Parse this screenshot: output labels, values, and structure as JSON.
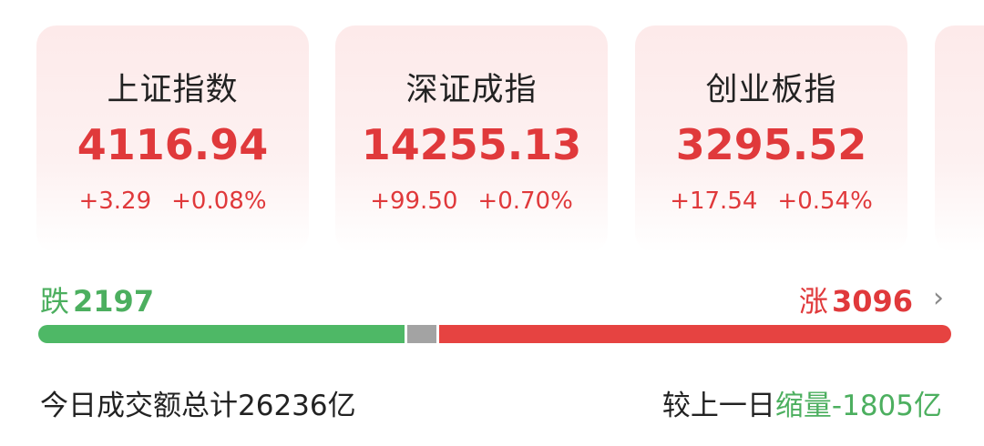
{
  "indices": [
    {
      "name": "上证指数",
      "value": "4116.94",
      "change": "+3.29",
      "pct": "+0.08%"
    },
    {
      "name": "深证成指",
      "value": "14255.13",
      "change": "+99.50",
      "pct": "+0.70%"
    },
    {
      "name": "创业板指",
      "value": "3295.52",
      "change": "+17.54",
      "pct": "+0.54%"
    }
  ],
  "breadth": {
    "down_label": "跌",
    "down": "2197",
    "up_label": "涨",
    "up": "3096",
    "down_fraction": 0.4,
    "flat_fraction": 0.03,
    "up_fraction": 0.57
  },
  "turnover": {
    "total_text": "今日成交额总计26236亿",
    "compare_prefix": "较上一日",
    "compare_value": "缩量-1805亿"
  },
  "colors": {
    "up": "#e0393b",
    "down": "#4caf5f",
    "flat": "#a3a3a3"
  }
}
